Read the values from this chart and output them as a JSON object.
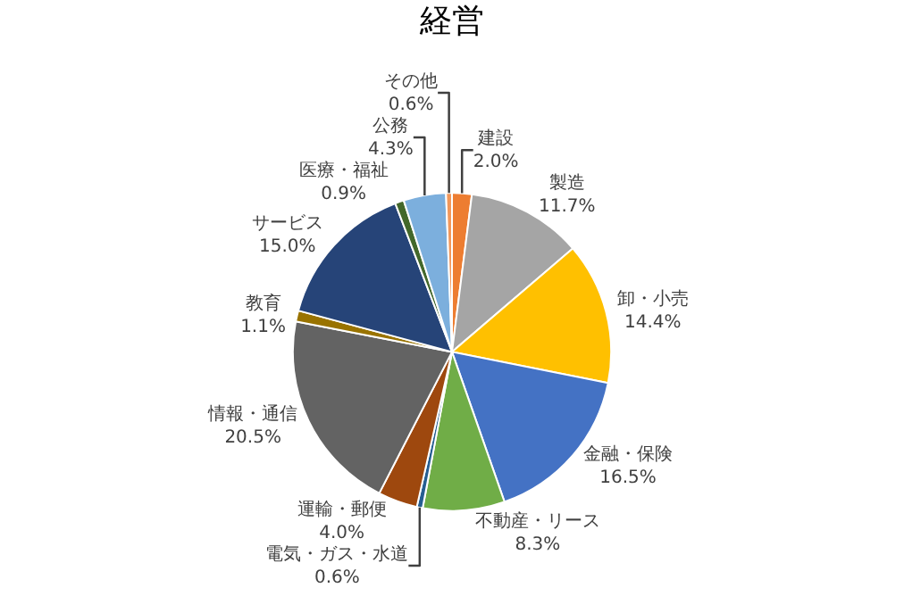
{
  "chart_data": {
    "type": "pie",
    "title": "経営",
    "categories": [
      "建設",
      "製造",
      "卸・小売",
      "金融・保険",
      "不動産・リース",
      "電気・ガス・水道",
      "運輸・郵便",
      "情報・通信",
      "教育",
      "サービス",
      "医療・福祉",
      "公務",
      "その他"
    ],
    "values": [
      2.0,
      11.7,
      14.4,
      16.5,
      8.3,
      0.6,
      4.0,
      20.5,
      1.1,
      15.0,
      0.9,
      4.3,
      0.6
    ],
    "value_labels": [
      "2.0%",
      "11.7%",
      "14.4%",
      "16.5%",
      "8.3%",
      "0.6%",
      "4.0%",
      "20.5%",
      "1.1%",
      "15.0%",
      "0.9%",
      "4.3%",
      "0.6%"
    ],
    "colors": [
      "#ed7d31",
      "#a5a5a5",
      "#ffc000",
      "#4472c4",
      "#70ad47",
      "#255e91",
      "#9e480e",
      "#636363",
      "#997300",
      "#264478",
      "#43682b",
      "#7cafdd",
      "#f1975a"
    ],
    "legend": false
  }
}
